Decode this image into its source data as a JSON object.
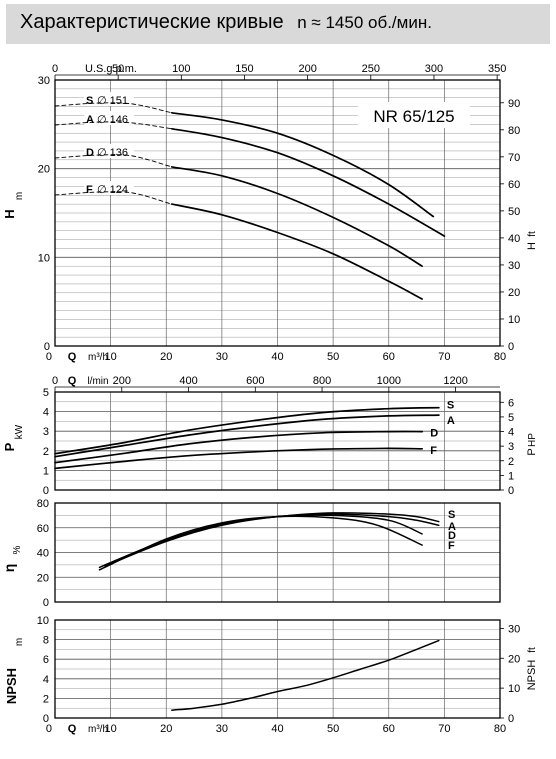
{
  "header": {
    "title": "Характеристические кривые",
    "speed": "n ≈ 1450 об./мин."
  },
  "chart_data": [
    {
      "type": "line",
      "title": "NR 65/125",
      "ylabel": "H",
      "ylabel_unit": "m",
      "y2label": "H",
      "y2label_unit": "ft",
      "xlabel": "Q",
      "xlabel_unit": "m³/h",
      "x_top_label": "U.S.g.p.m.",
      "x_top_ticks": [
        "0",
        "50",
        "100",
        "150",
        "200",
        "250",
        "300",
        "350"
      ],
      "x_ticks": [
        "0",
        "10",
        "20",
        "30",
        "40",
        "50",
        "60",
        "70",
        "80"
      ],
      "y_ticks": [
        "0",
        "10",
        "20",
        "30"
      ],
      "y2_ticks": [
        "0",
        "10",
        "20",
        "30",
        "40",
        "50",
        "60",
        "70",
        "80",
        "90"
      ],
      "xlim": [
        0,
        80
      ],
      "ylim": [
        0,
        30
      ],
      "grid": true,
      "series": [
        {
          "name": "S",
          "diameter": "∅ 151",
          "x": [
            21,
            30,
            40,
            50,
            60,
            68
          ],
          "y": [
            26.3,
            25.5,
            24,
            21.5,
            18.2,
            14.6
          ]
        },
        {
          "name": "A",
          "diameter": "∅ 146",
          "x": [
            21,
            30,
            40,
            50,
            60,
            70
          ],
          "y": [
            24.5,
            23.5,
            21.8,
            19.2,
            16,
            12.4
          ]
        },
        {
          "name": "D",
          "diameter": "∅ 136",
          "x": [
            21,
            30,
            40,
            50,
            60,
            66
          ],
          "y": [
            20.2,
            19.2,
            17.2,
            14.5,
            11.3,
            9
          ]
        },
        {
          "name": "F",
          "diameter": "∅ 124",
          "x": [
            21,
            30,
            40,
            50,
            60,
            66
          ],
          "y": [
            16,
            14.8,
            12.8,
            10.4,
            7.3,
            5.3
          ]
        }
      ]
    },
    {
      "type": "line",
      "ylabel": "P",
      "ylabel_unit": "kW",
      "y2label": "P",
      "y2label_unit": "HP",
      "xlabel": "Q",
      "xlabel_unit": "l/min",
      "x_ticks": [
        "0",
        "200",
        "400",
        "600",
        "800",
        "1000",
        "1200"
      ],
      "y_ticks": [
        "0",
        "1",
        "2",
        "3",
        "4",
        "5"
      ],
      "y2_ticks": [
        "0",
        "1",
        "2",
        "3",
        "4",
        "5",
        "6"
      ],
      "xlim": [
        0,
        1333
      ],
      "ylim": [
        0,
        5
      ],
      "grid": true,
      "series": [
        {
          "name": "S",
          "x": [
            0,
            200,
            400,
            600,
            800,
            1000,
            1150
          ],
          "y": [
            1.85,
            2.4,
            3.05,
            3.55,
            3.95,
            4.15,
            4.2
          ]
        },
        {
          "name": "A",
          "x": [
            0,
            200,
            400,
            600,
            800,
            1000,
            1150
          ],
          "y": [
            1.7,
            2.25,
            2.8,
            3.25,
            3.6,
            3.78,
            3.82
          ]
        },
        {
          "name": "D",
          "x": [
            0,
            200,
            400,
            600,
            800,
            1000,
            1100
          ],
          "y": [
            1.4,
            1.85,
            2.35,
            2.7,
            2.92,
            2.98,
            2.98
          ]
        },
        {
          "name": "F",
          "x": [
            0,
            200,
            400,
            600,
            800,
            1000,
            1100
          ],
          "y": [
            1.1,
            1.45,
            1.75,
            1.95,
            2.08,
            2.12,
            2.1
          ]
        }
      ]
    },
    {
      "type": "line",
      "ylabel": "η",
      "ylabel_unit": "%",
      "y_ticks": [
        "0",
        "20",
        "40",
        "60",
        "80"
      ],
      "xlim": [
        0,
        80
      ],
      "ylim": [
        0,
        80
      ],
      "grid": true,
      "series": [
        {
          "name": "S",
          "x": [
            9,
            20,
            30,
            40,
            50,
            60,
            65,
            69
          ],
          "y": [
            30,
            50,
            63,
            69,
            72,
            71,
            69,
            65
          ]
        },
        {
          "name": "A",
          "x": [
            9,
            20,
            30,
            40,
            50,
            60,
            65,
            69
          ],
          "y": [
            29,
            49,
            62,
            69,
            71,
            69,
            66,
            62
          ]
        },
        {
          "name": "D",
          "x": [
            8,
            20,
            30,
            40,
            50,
            60,
            66
          ],
          "y": [
            28,
            50,
            63,
            69,
            70,
            66,
            55
          ]
        },
        {
          "name": "F",
          "x": [
            8,
            20,
            30,
            40,
            50,
            58,
            66
          ],
          "y": [
            26,
            51,
            64,
            69,
            68,
            62,
            46
          ]
        }
      ]
    },
    {
      "type": "line",
      "ylabel": "NPSH",
      "ylabel_unit": "m",
      "y2label": "NPSH",
      "y2label_unit": "ft",
      "xlabel": "Q",
      "xlabel_unit": "m³/h",
      "x_ticks": [
        "0",
        "10",
        "20",
        "30",
        "40",
        "50",
        "60",
        "70",
        "80"
      ],
      "y_ticks": [
        "0",
        "2",
        "4",
        "6",
        "8",
        "10"
      ],
      "y2_ticks": [
        "0",
        "10",
        "20",
        "30"
      ],
      "xlim": [
        0,
        80
      ],
      "ylim": [
        0,
        10
      ],
      "grid": true,
      "series": [
        {
          "name": "NPSH",
          "x": [
            21,
            25,
            30,
            35,
            40,
            45,
            50,
            55,
            60,
            65,
            69
          ],
          "y": [
            0.8,
            1,
            1.4,
            2,
            2.7,
            3.3,
            4.1,
            5,
            5.9,
            7,
            7.9
          ]
        }
      ]
    }
  ]
}
